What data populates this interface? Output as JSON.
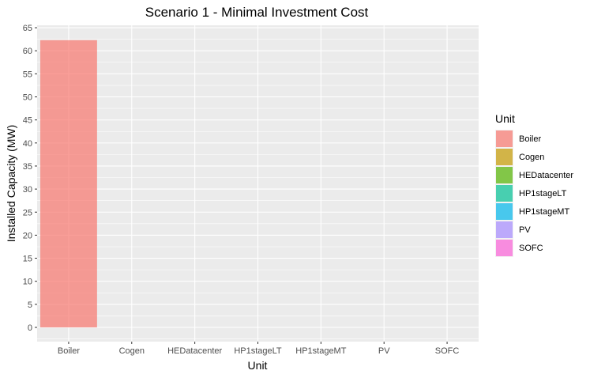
{
  "chart_data": {
    "type": "bar",
    "title": "Scenario 1 - Minimal Investment Cost",
    "xlabel": "Unit",
    "ylabel": "Installed Capacity (MW)",
    "categories": [
      "Boiler",
      "Cogen",
      "HEDatacenter",
      "HP1stageLT",
      "HP1stageMT",
      "PV",
      "SOFC"
    ],
    "values": [
      62.3,
      0,
      0,
      0,
      0,
      0,
      0
    ],
    "colors": [
      "#F8766D",
      "#C49A00",
      "#53B400",
      "#00C094",
      "#00B6EB",
      "#A58AFF",
      "#FB61D7"
    ],
    "bar_opacity": 0.7,
    "ylim": [
      0,
      65
    ],
    "yticks": [
      0,
      5,
      10,
      15,
      20,
      25,
      30,
      35,
      40,
      45,
      50,
      55,
      60,
      65
    ],
    "grid": true,
    "panel_background": "#EBEBEB",
    "legend": {
      "title": "Unit",
      "position": "right",
      "entries": [
        "Boiler",
        "Cogen",
        "HEDatacenter",
        "HP1stageLT",
        "HP1stageMT",
        "PV",
        "SOFC"
      ]
    }
  }
}
